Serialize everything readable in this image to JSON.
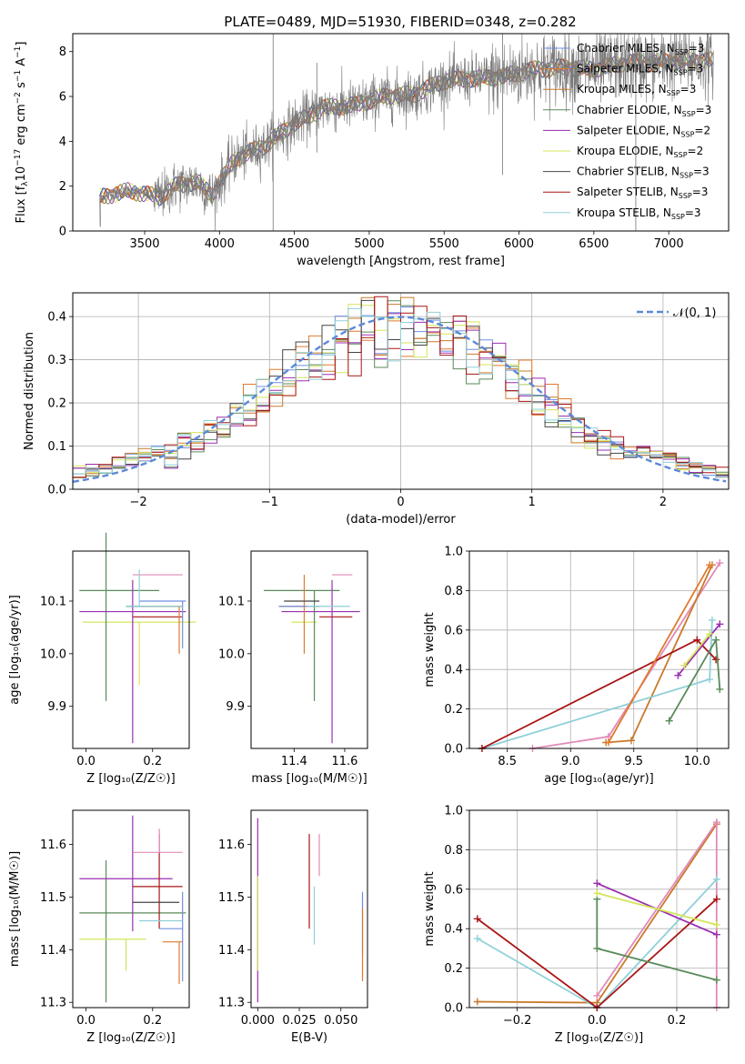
{
  "figure": {
    "title": "PLATE=0489, MJD=51930, FIBERID=0348, z=0.282"
  },
  "colors": {
    "chabrier_miles": "#6f8fe0",
    "salpeter_miles": "#e07a2e",
    "kroupa_miles": "#c87a2a",
    "chabrier_elodie": "#5a8a5a",
    "salpeter_elodie": "#9a2fb0",
    "kroupa_elodie": "#d4e55a",
    "chabrier_stelib": "#444444",
    "salpeter_stelib": "#aa1414",
    "kroupa_stelib": "#8fd0d8",
    "pink": "#e08ab8",
    "dashed_normal": "#5b8ad8",
    "observed": "#7a7a7a"
  },
  "chart_data": [
    {
      "id": "spectrum",
      "type": "line",
      "title": "PLATE=0489, MJD=51930, FIBERID=0348, z=0.282",
      "xlabel": "wavelength [Angstrom, rest frame]",
      "ylabel_parts": [
        "Flux [f",
        "λ",
        "10",
        "−17",
        " erg cm",
        "−2",
        " s",
        "−1",
        " A",
        "−1",
        "]"
      ],
      "xlim": [
        3020,
        7400
      ],
      "ylim": [
        0,
        8.8
      ],
      "xticks": [
        3500,
        4000,
        4500,
        5000,
        5500,
        6000,
        6500,
        7000
      ],
      "yticks": [
        0,
        2,
        4,
        6,
        8
      ],
      "grid": false,
      "legend_position": "right",
      "legend": [
        {
          "label": "Chabrier MILES, N",
          "sub": "SSP",
          "tail": "=3",
          "color": "#6f8fe0"
        },
        {
          "label": "Salpeter MILES, N",
          "sub": "SSP",
          "tail": "=3",
          "color": "#e07a2e"
        },
        {
          "label": "Kroupa MILES, N",
          "sub": "SSP",
          "tail": "=3",
          "color": "#c87a2a"
        },
        {
          "label": "Chabrier ELODIE, N",
          "sub": "SSP",
          "tail": "=3",
          "color": "#5a8a5a"
        },
        {
          "label": "Salpeter ELODIE, N",
          "sub": "SSP",
          "tail": "=2",
          "color": "#9a2fb0"
        },
        {
          "label": "Kroupa ELODIE, N",
          "sub": "SSP",
          "tail": "=2",
          "color": "#d4e55a"
        },
        {
          "label": "Chabrier STELIB, N",
          "sub": "SSP",
          "tail": "=3",
          "color": "#444444"
        },
        {
          "label": "Salpeter STELIB, N",
          "sub": "SSP",
          "tail": "=3",
          "color": "#aa1414"
        },
        {
          "label": "Kroupa STELIB, N",
          "sub": "SSP",
          "tail": "=3",
          "color": "#8fd0d8"
        }
      ],
      "continuum": [
        [
          3200,
          1.5
        ],
        [
          3400,
          1.8
        ],
        [
          3600,
          1.5
        ],
        [
          3700,
          2.0
        ],
        [
          3850,
          2.2
        ],
        [
          3950,
          1.6
        ],
        [
          4100,
          3.2
        ],
        [
          4300,
          3.8
        ],
        [
          4500,
          4.8
        ],
        [
          4700,
          5.5
        ],
        [
          4900,
          5.6
        ],
        [
          5100,
          6.0
        ],
        [
          5300,
          6.1
        ],
        [
          5500,
          6.7
        ],
        [
          5700,
          6.8
        ],
        [
          5900,
          6.9
        ],
        [
          6100,
          7.2
        ],
        [
          6300,
          7.3
        ],
        [
          6500,
          7.2
        ],
        [
          6700,
          7.5
        ],
        [
          6900,
          7.5
        ],
        [
          7100,
          7.6
        ],
        [
          7300,
          7.6
        ]
      ]
    },
    {
      "id": "residuals",
      "type": "bar",
      "xlabel": "(data-model)/error",
      "ylabel": "Normed distribution",
      "xlim": [
        -2.5,
        2.5
      ],
      "ylim": [
        0,
        0.455
      ],
      "xticks": [
        -2,
        -1,
        0,
        1,
        2
      ],
      "yticks": [
        0.0,
        0.1,
        0.2,
        0.3,
        0.4
      ],
      "grid": true,
      "legend_position": "top-right",
      "legend": [
        {
          "label": "𝒩(0, 1)",
          "style": "dashed"
        }
      ],
      "normal_curve": {
        "mean": 0,
        "sigma": 1
      }
    },
    {
      "id": "age_vs_Z",
      "type": "scatter",
      "xlabel": "Z [log₁₀(Z/Z☉)]",
      "ylabel": "age  [log₁₀(age/yr)]",
      "xlim": [
        -0.04,
        0.31
      ],
      "ylim": [
        9.82,
        10.195
      ],
      "xticks": [
        0.0,
        0.2
      ],
      "yticks": [
        9.9,
        10.0,
        10.1
      ],
      "points": [
        {
          "x": 0.16,
          "y": 10.06,
          "xerr": [
            0.17,
            0.17
          ],
          "yerr": [
            0.12,
            0.0
          ],
          "color": "#d4e55a"
        },
        {
          "x": 0.06,
          "y": 10.12,
          "xerr": [
            0.08,
            0.16
          ],
          "yerr": [
            0.21,
            0.11
          ],
          "color": "#5a8a5a"
        },
        {
          "x": 0.14,
          "y": 10.08,
          "xerr": [
            0.16,
            0.16
          ],
          "yerr": [
            0.25,
            0.06
          ],
          "color": "#9a2fb0"
        },
        {
          "x": 0.22,
          "y": 10.07,
          "xerr": [
            0.08,
            0.07
          ],
          "yerr": [
            0.0,
            0.0
          ],
          "color": "#aa1414"
        },
        {
          "x": 0.16,
          "y": 10.09,
          "xerr": [
            0.04,
            0.13
          ],
          "yerr": [
            0.0,
            0.0
          ],
          "color": "#444444"
        },
        {
          "x": 0.28,
          "y": 10.09,
          "xerr": [
            0.09,
            0.01
          ],
          "yerr": [
            0.09,
            0.0
          ],
          "color": "#e07a2e"
        },
        {
          "x": 0.29,
          "y": 10.1,
          "xerr": [
            0.13,
            0.01
          ],
          "yerr": [
            0.09,
            0.0
          ],
          "color": "#6f8fe0"
        },
        {
          "x": 0.22,
          "y": 10.15,
          "xerr": [
            0.08,
            0.07
          ],
          "yerr": [
            0.0,
            0.0
          ],
          "color": "#e08ab8"
        },
        {
          "x": 0.16,
          "y": 10.09,
          "xerr": [
            0.04,
            0.13
          ],
          "yerr": [
            0.0,
            0.07
          ],
          "color": "#8fd0d8"
        }
      ]
    },
    {
      "id": "age_vs_mass",
      "type": "scatter",
      "xlabel": "mass [log₁₀(M/M☉)]",
      "ylabel": "",
      "xlim": [
        11.23,
        11.69
      ],
      "ylim": [
        9.82,
        10.195
      ],
      "xticks": [
        11.4,
        11.6
      ],
      "yticks": [
        9.9,
        10.0,
        10.1
      ],
      "points": [
        {
          "x": 11.44,
          "y": 10.06,
          "xerr": [
            0.05,
            0.05
          ],
          "yerr": [
            0.0,
            0.0
          ],
          "color": "#d4e55a"
        },
        {
          "x": 11.48,
          "y": 10.12,
          "xerr": [
            0.2,
            0.1
          ],
          "yerr": [
            0.21,
            0.0
          ],
          "color": "#5a8a5a"
        },
        {
          "x": 11.55,
          "y": 10.08,
          "xerr": [
            0.2,
            0.11
          ],
          "yerr": [
            0.25,
            0.06
          ],
          "color": "#9a2fb0"
        },
        {
          "x": 11.54,
          "y": 10.07,
          "xerr": [
            0.04,
            0.09
          ],
          "yerr": [
            0.0,
            0.0
          ],
          "color": "#aa1414"
        },
        {
          "x": 11.44,
          "y": 10.09,
          "xerr": [
            0.1,
            0.06
          ],
          "yerr": [
            0.09,
            0.06
          ],
          "color": "#e07a2e"
        },
        {
          "x": 11.44,
          "y": 10.09,
          "xerr": [
            0.1,
            0.06
          ],
          "yerr": [
            0.0,
            0.0
          ],
          "color": "#6f8fe0"
        },
        {
          "x": 11.59,
          "y": 10.15,
          "xerr": [
            0.04,
            0.04
          ],
          "yerr": [
            0.0,
            0.0
          ],
          "color": "#e08ab8"
        },
        {
          "x": 11.49,
          "y": 10.09,
          "xerr": [
            0.04,
            0.13
          ],
          "yerr": [
            0.0,
            0.0
          ],
          "color": "#8fd0d8"
        },
        {
          "x": 11.46,
          "y": 10.1,
          "xerr": [
            0.1,
            0.04
          ],
          "yerr": [
            0.0,
            0.0
          ],
          "color": "#444444"
        }
      ]
    },
    {
      "id": "weight_vs_age",
      "type": "line",
      "xlabel": "age  [log₁₀(age/yr)]",
      "ylabel": "mass weight",
      "xlim": [
        8.2,
        10.25
      ],
      "ylim": [
        0,
        1.0
      ],
      "xticks": [
        8.5,
        9.0,
        9.5,
        10.0
      ],
      "yticks": [
        0.0,
        0.2,
        0.4,
        0.6,
        0.8,
        1.0
      ],
      "grid": true,
      "series": [
        {
          "color": "#e08ab8",
          "points": [
            [
              8.7,
              0.0
            ],
            [
              9.3,
              0.06
            ],
            [
              10.18,
              0.94
            ]
          ]
        },
        {
          "color": "#c87a2a",
          "points": [
            [
              9.28,
              0.03
            ],
            [
              9.48,
              0.04
            ],
            [
              10.12,
              0.93
            ]
          ]
        },
        {
          "color": "#8fd0d8",
          "points": [
            [
              8.3,
              0.0
            ],
            [
              10.1,
              0.35
            ],
            [
              10.12,
              0.65
            ]
          ]
        },
        {
          "color": "#aa1414",
          "points": [
            [
              8.3,
              0.0
            ],
            [
              10.0,
              0.55
            ],
            [
              10.15,
              0.45
            ]
          ]
        },
        {
          "color": "#5a8a5a",
          "points": [
            [
              9.78,
              0.14
            ],
            [
              10.15,
              0.55
            ],
            [
              10.18,
              0.3
            ]
          ]
        },
        {
          "color": "#9a2fb0",
          "points": [
            [
              9.85,
              0.37
            ],
            [
              10.18,
              0.63
            ]
          ]
        },
        {
          "color": "#d4e55a",
          "points": [
            [
              9.9,
              0.42
            ],
            [
              10.1,
              0.58
            ]
          ]
        },
        {
          "color": "#e07a2e",
          "points": [
            [
              9.3,
              0.03
            ],
            [
              10.1,
              0.93
            ]
          ]
        }
      ]
    },
    {
      "id": "mass_vs_Z",
      "type": "scatter",
      "xlabel": "Z [log₁₀(Z/Z☉)]",
      "ylabel": "mass [log₁₀(M/M☉)]",
      "xlim": [
        -0.04,
        0.31
      ],
      "ylim": [
        11.29,
        11.665
      ],
      "xticks": [
        0.0,
        0.2
      ],
      "yticks": [
        11.3,
        11.4,
        11.5,
        11.6
      ],
      "points": [
        {
          "x": 0.06,
          "y": 11.47,
          "xerr": [
            0.08,
            0.24
          ],
          "yerr": [
            0.17,
            0.1
          ],
          "color": "#5a8a5a"
        },
        {
          "x": 0.14,
          "y": 11.535,
          "xerr": [
            0.16,
            0.12
          ],
          "yerr": [
            0.1,
            0.12
          ],
          "color": "#9a2fb0"
        },
        {
          "x": 0.12,
          "y": 11.42,
          "xerr": [
            0.14,
            0.06
          ],
          "yerr": [
            0.06,
            0.0
          ],
          "color": "#d4e55a"
        },
        {
          "x": 0.22,
          "y": 11.52,
          "xerr": [
            0.08,
            0.07
          ],
          "yerr": [
            0.08,
            0.1
          ],
          "color": "#aa1414"
        },
        {
          "x": 0.22,
          "y": 11.585,
          "xerr": [
            0.08,
            0.07
          ],
          "yerr": [
            0.0,
            0.045
          ],
          "color": "#e08ab8"
        },
        {
          "x": 0.28,
          "y": 11.415,
          "xerr": [
            0.05,
            0.01
          ],
          "yerr": [
            0.08,
            0.0
          ],
          "color": "#e07a2e"
        },
        {
          "x": 0.29,
          "y": 11.44,
          "xerr": [
            0.07,
            0.0
          ],
          "yerr": [
            0.1,
            0.07
          ],
          "color": "#6f8fe0"
        },
        {
          "x": 0.22,
          "y": 11.49,
          "xerr": [
            0.08,
            0.06
          ],
          "yerr": [
            0.0,
            0.0
          ],
          "color": "#444444"
        },
        {
          "x": 0.2,
          "y": 11.455,
          "xerr": [
            0.04,
            0.09
          ],
          "yerr": [
            0.0,
            0.0
          ],
          "color": "#8fd0d8"
        }
      ]
    },
    {
      "id": "mass_vs_ebv",
      "type": "scatter",
      "xlabel": "E(B-V)",
      "ylabel": "",
      "xlim": [
        -0.004,
        0.066
      ],
      "ylim": [
        11.29,
        11.665
      ],
      "xticks": [
        0.0,
        0.025,
        0.05
      ],
      "yticks": [
        11.3,
        11.4,
        11.5,
        11.6
      ],
      "points": [
        {
          "x": 0.0,
          "y": 11.47,
          "yerr": [
            0.17,
            0.18
          ],
          "color": "#9a2fb0"
        },
        {
          "x": 0.0,
          "y": 11.45,
          "yerr": [
            0.09,
            0.09
          ],
          "color": "#d4e55a"
        },
        {
          "x": 0.031,
          "y": 11.53,
          "yerr": [
            0.09,
            0.09
          ],
          "color": "#aa1414"
        },
        {
          "x": 0.034,
          "y": 11.47,
          "yerr": [
            0.06,
            0.05
          ],
          "color": "#8fd0d8"
        },
        {
          "x": 0.037,
          "y": 11.58,
          "yerr": [
            0.04,
            0.04
          ],
          "color": "#e08ab8"
        },
        {
          "x": 0.063,
          "y": 11.45,
          "yerr": [
            0.06,
            0.06
          ],
          "color": "#6f8fe0"
        },
        {
          "x": 0.063,
          "y": 11.41,
          "yerr": [
            0.07,
            0.07
          ],
          "color": "#e07a2e"
        }
      ]
    },
    {
      "id": "weight_vs_Z",
      "type": "line",
      "xlabel": "Z [log₁₀(Z/Z☉)]",
      "ylabel": "mass weight",
      "xlim": [
        -0.32,
        0.33
      ],
      "ylim": [
        0,
        1.0
      ],
      "xticks": [
        -0.2,
        0.0,
        0.2
      ],
      "yticks": [
        0.0,
        0.2,
        0.4,
        0.6,
        0.8,
        1.0
      ],
      "grid": true,
      "series": [
        {
          "color": "#c87a2a",
          "points": [
            [
              -0.3,
              0.03
            ],
            [
              0.0,
              0.025
            ],
            [
              0.3,
              0.93
            ]
          ]
        },
        {
          "color": "#e08ab8",
          "points": [
            [
              0.0,
              0.06
            ],
            [
              0.3,
              0.94
            ],
            [
              0.3,
              0.0
            ]
          ]
        },
        {
          "color": "#8fd0d8",
          "points": [
            [
              -0.3,
              0.35
            ],
            [
              0.0,
              0.0
            ],
            [
              0.3,
              0.65
            ]
          ]
        },
        {
          "color": "#aa1414",
          "points": [
            [
              -0.3,
              0.45
            ],
            [
              0.0,
              0.0
            ],
            [
              0.3,
              0.55
            ]
          ]
        },
        {
          "color": "#5a8a5a",
          "points": [
            [
              0.0,
              0.55
            ],
            [
              0.0,
              0.3
            ],
            [
              0.3,
              0.14
            ]
          ]
        },
        {
          "color": "#9a2fb0",
          "points": [
            [
              0.0,
              0.63
            ],
            [
              0.3,
              0.37
            ]
          ]
        },
        {
          "color": "#d4e55a",
          "points": [
            [
              0.0,
              0.58
            ],
            [
              0.3,
              0.42
            ]
          ]
        }
      ]
    }
  ]
}
